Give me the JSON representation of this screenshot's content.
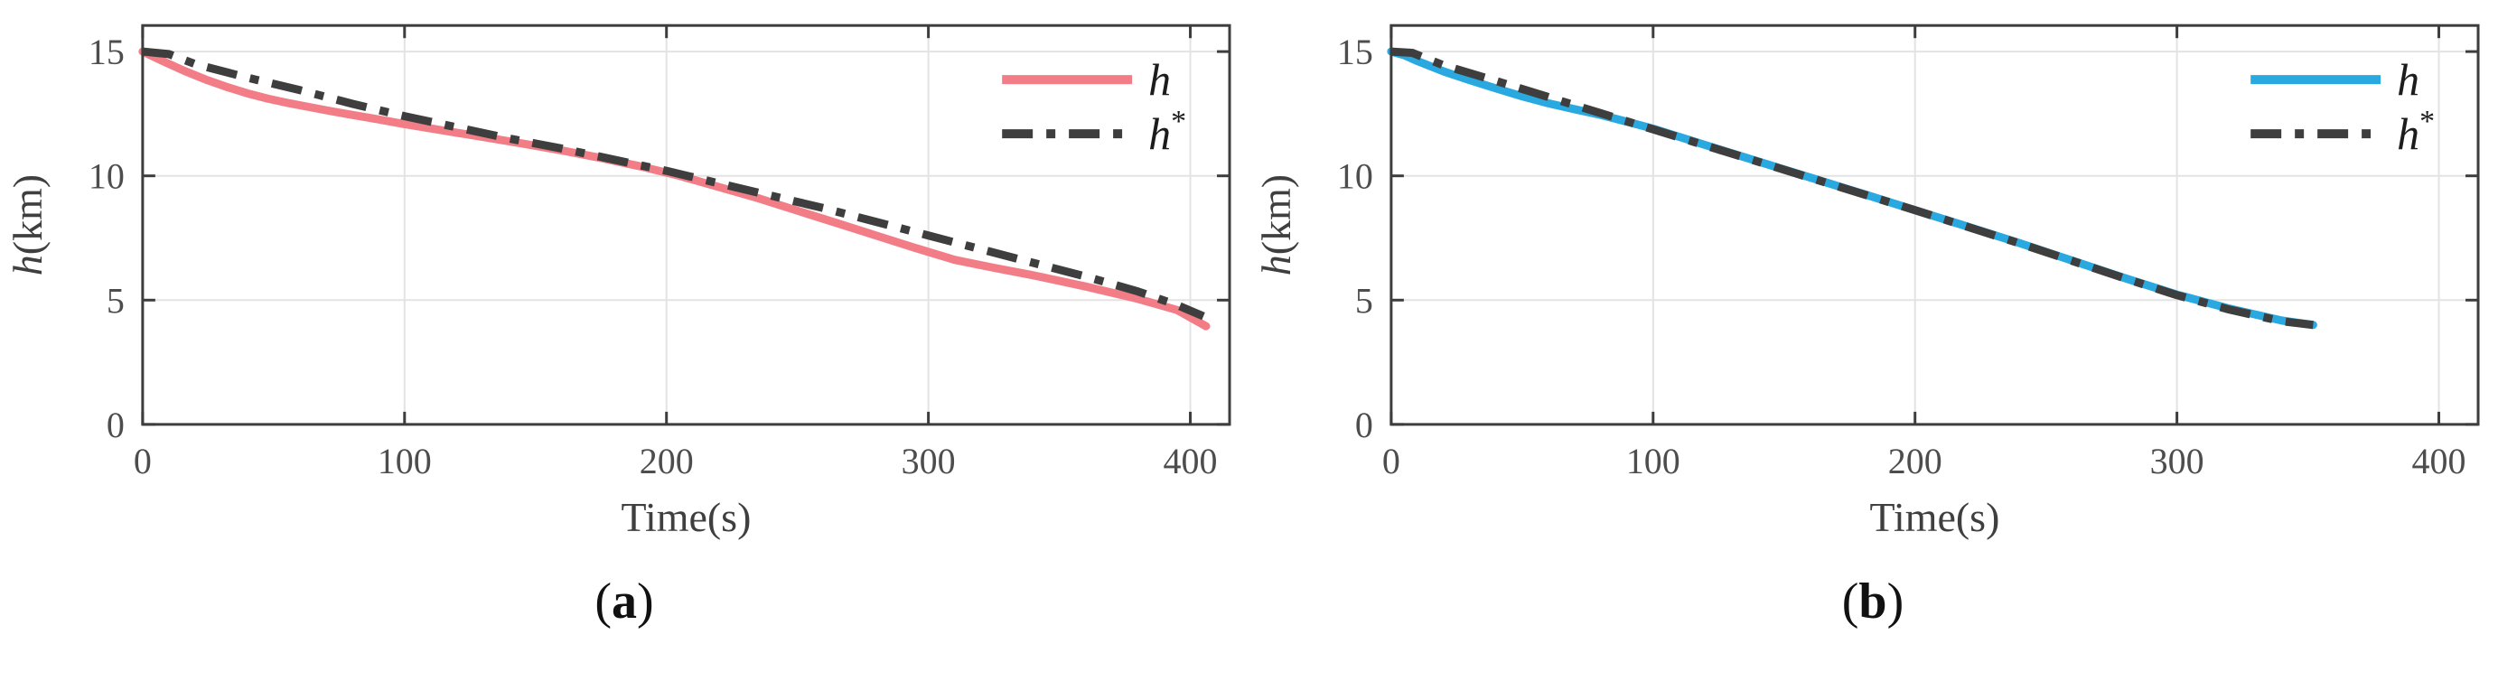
{
  "style": {
    "background": "#ffffff",
    "grid_color": "#e3e3e3",
    "axis_color": "#3d3d3d",
    "tick_label_color": "#4d4d4d",
    "axis_label_color": "#3f3f3f",
    "caption_color": "#111111",
    "red": "#f27d86",
    "blue": "#29a9e0",
    "dash_gray": "#3e3e3e"
  },
  "chart_data": [
    {
      "type": "line",
      "caption": {
        "open": "(",
        "label": "a",
        "close": ")"
      },
      "xlabel": "Time(s)",
      "ylabel": "h(km)",
      "ylabel_parts": {
        "italic": "h",
        "normal": "(km)"
      },
      "xlim": [
        0,
        415
      ],
      "ylim": [
        0,
        16.05
      ],
      "xticks": [
        0,
        100,
        200,
        300,
        400
      ],
      "yticks": [
        0,
        5,
        10,
        15
      ],
      "grid": true,
      "legend_position": "upper-right",
      "series": [
        {
          "name": "h",
          "color": "#f27d86",
          "style": "solid",
          "x": [
            0,
            8,
            16,
            24,
            32,
            40,
            48,
            56,
            64,
            72,
            80,
            90,
            100,
            115,
            130,
            145,
            160,
            175,
            190,
            205,
            220,
            235,
            250,
            265,
            280,
            295,
            310,
            325,
            340,
            360,
            380,
            395,
            406
          ],
          "y": [
            15.0,
            14.6,
            14.22,
            13.88,
            13.58,
            13.32,
            13.1,
            12.92,
            12.76,
            12.6,
            12.45,
            12.27,
            12.08,
            11.82,
            11.56,
            11.3,
            11.02,
            10.72,
            10.38,
            10.0,
            9.55,
            9.1,
            8.6,
            8.1,
            7.6,
            7.1,
            6.62,
            6.3,
            6.0,
            5.55,
            5.05,
            4.6,
            3.95
          ]
        },
        {
          "name": "h*",
          "color": "#3e3e3e",
          "style": "dashdot",
          "x": [
            0,
            10,
            20,
            40,
            60,
            80,
            100,
            120,
            140,
            160,
            180,
            200,
            220,
            240,
            260,
            280,
            300,
            320,
            340,
            360,
            380,
            395,
            405
          ],
          "y": [
            15.0,
            14.9,
            14.5,
            13.95,
            13.45,
            12.9,
            12.4,
            11.95,
            11.5,
            11.1,
            10.65,
            10.2,
            9.7,
            9.2,
            8.7,
            8.15,
            7.6,
            7.05,
            6.5,
            5.95,
            5.35,
            4.8,
            4.35
          ]
        }
      ]
    },
    {
      "type": "line",
      "caption": {
        "open": "(",
        "label": "b",
        "close": ")"
      },
      "xlabel": "Time(s)",
      "ylabel": "h(km)",
      "ylabel_parts": {
        "italic": "h",
        "normal": "(km)"
      },
      "xlim": [
        0,
        415
      ],
      "ylim": [
        0,
        16.05
      ],
      "xticks": [
        0,
        100,
        200,
        300,
        400
      ],
      "yticks": [
        0,
        5,
        10,
        15
      ],
      "grid": true,
      "legend_position": "upper-right",
      "series": [
        {
          "name": "h",
          "color": "#29a9e0",
          "style": "solid",
          "x": [
            0,
            5,
            10,
            20,
            30,
            40,
            50,
            60,
            70,
            80,
            90,
            100,
            120,
            140,
            160,
            180,
            200,
            220,
            240,
            260,
            280,
            300,
            320,
            340,
            352
          ],
          "y": [
            15.0,
            14.85,
            14.62,
            14.2,
            13.85,
            13.52,
            13.2,
            12.92,
            12.68,
            12.45,
            12.18,
            11.9,
            11.24,
            10.58,
            9.93,
            9.28,
            8.62,
            7.96,
            7.29,
            6.59,
            5.89,
            5.22,
            4.66,
            4.18,
            4.0
          ]
        },
        {
          "name": "h*",
          "color": "#3e3e3e",
          "style": "dashdot",
          "x": [
            0,
            8,
            20,
            40,
            60,
            80,
            100,
            120,
            140,
            160,
            180,
            200,
            220,
            240,
            260,
            280,
            300,
            320,
            340,
            352
          ],
          "y": [
            15.0,
            14.95,
            14.45,
            13.82,
            13.17,
            12.52,
            11.87,
            11.22,
            10.57,
            9.92,
            9.27,
            8.62,
            7.95,
            7.28,
            6.58,
            5.88,
            5.2,
            4.62,
            4.15,
            4.0
          ]
        }
      ]
    }
  ]
}
